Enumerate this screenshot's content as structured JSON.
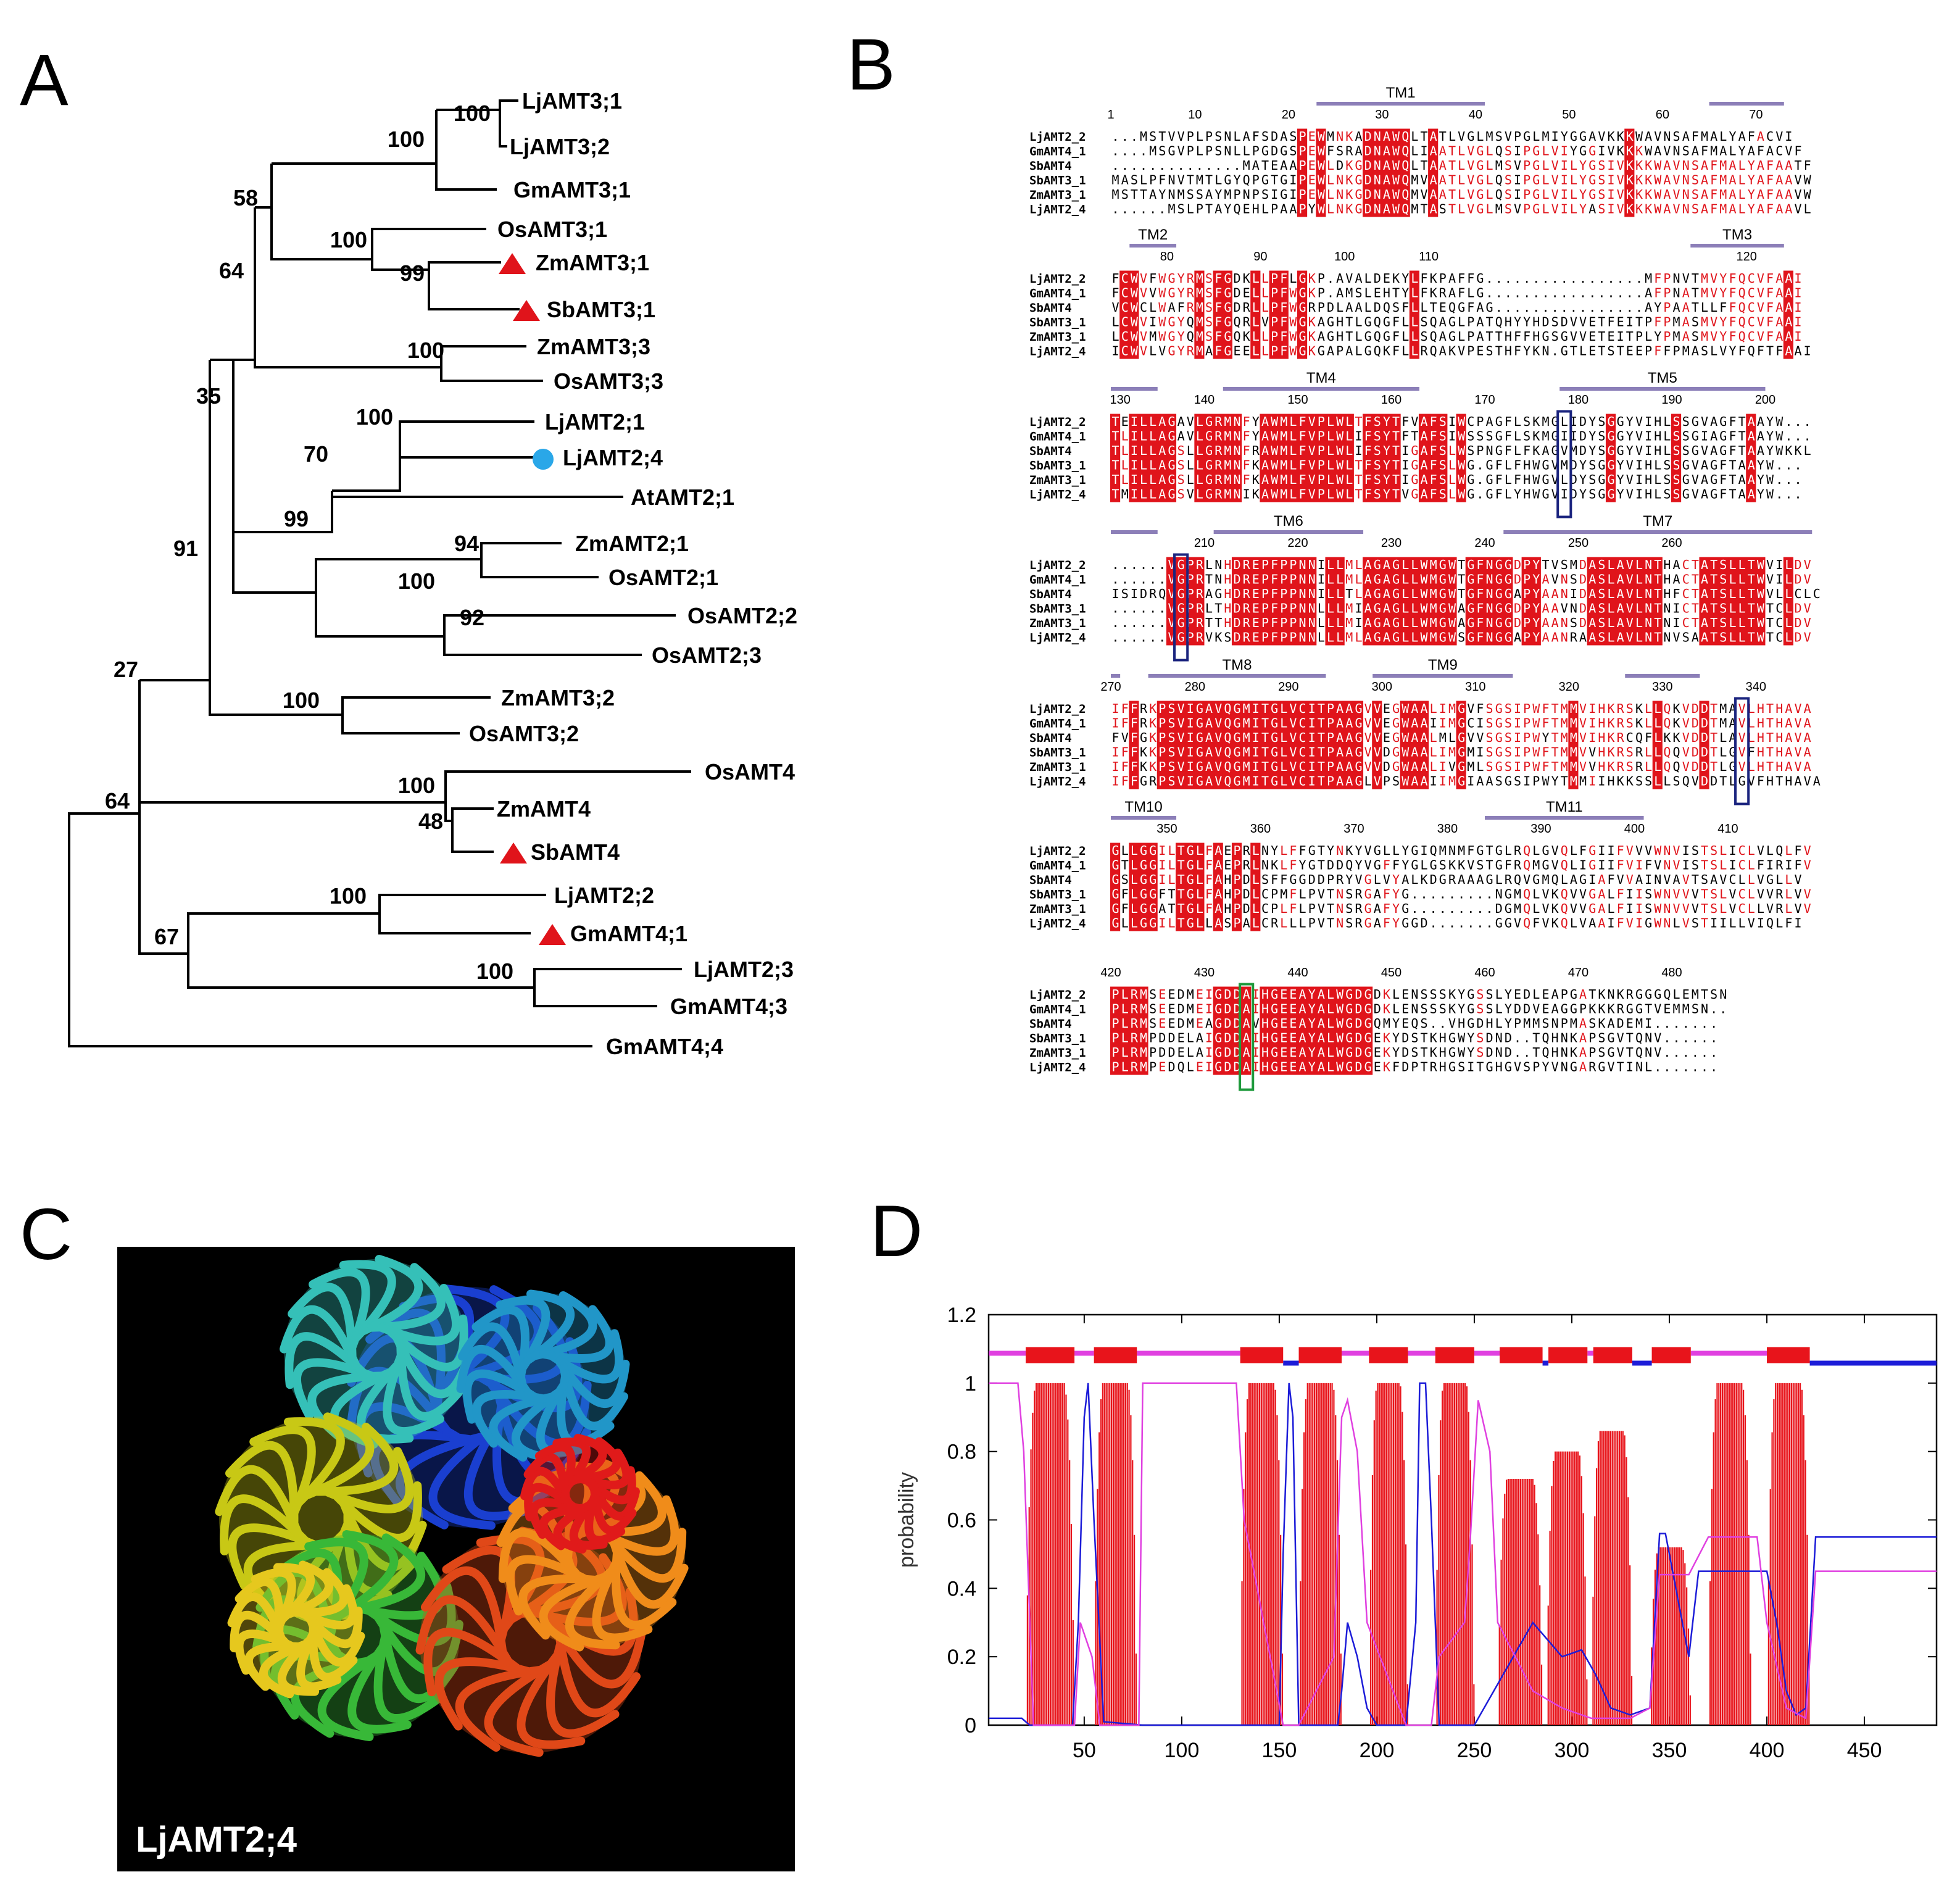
{
  "figure": {
    "panels": {
      "A": "A",
      "B": "B",
      "C": "C",
      "D": "D"
    },
    "colors": {
      "tree": "#000000",
      "triangle": "#e0141b",
      "circle": "#2aa7e8",
      "conserved": "#e0141b",
      "similar_text": "#e0141b",
      "tm_bar": "#8c7fb8",
      "box_blue": "#1a237e",
      "box_green": "#1e9a3c",
      "structure_bg": "#000000",
      "plot_red": "#e8141b",
      "plot_blue": "#1c1cd8",
      "plot_magenta": "#e040e0"
    }
  },
  "panel_a": {
    "leaves": [
      "LjAMT3;1",
      "LjAMT3;2",
      "GmAMT3;1",
      "OsAMT3;1",
      "ZmAMT3;1",
      "SbAMT3;1",
      "ZmAMT3;3",
      "OsAMT3;3",
      "LjAMT2;1",
      "LjAMT2;4",
      "AtAMT2;1",
      "ZmAMT2;1",
      "OsAMT2;1",
      "OsAMT2;2",
      "OsAMT2;3",
      "ZmAMT3;2",
      "OsAMT3;2",
      "OsAMT4",
      "ZmAMT4",
      "SbAMT4",
      "LjAMT2;2",
      "GmAMT4;1",
      "LjAMT2;3",
      "GmAMT4;3",
      "GmAMT4;4"
    ],
    "markers": {
      "triangle": [
        "ZmAMT3;1",
        "SbAMT3;1",
        "SbAMT4",
        "GmAMT4;1"
      ],
      "circle": [
        "LjAMT2;4"
      ]
    },
    "bootstrap": [
      "100",
      "100",
      "58",
      "100",
      "99",
      "64",
      "100",
      "35",
      "100",
      "70",
      "99",
      "94",
      "100",
      "92",
      "91",
      "27",
      "100",
      "100",
      "48",
      "64",
      "100",
      "67",
      "100"
    ]
  },
  "panel_b": {
    "tm_labels": [
      "TM1",
      "TM2",
      "TM3",
      "TM4",
      "TM5",
      "TM6",
      "TM7",
      "TM8",
      "TM9",
      "TM10",
      "TM11"
    ],
    "sequence_names": [
      "LjAMT2_2",
      "GmAMT4_1",
      "SbAMT4",
      "SbAMT3_1",
      "ZmAMT3_1",
      "LjAMT2_4"
    ],
    "blocks": [
      {
        "ruler": [
          "1",
          "10",
          "20",
          "30",
          "40",
          "50",
          "60",
          "70"
        ],
        "rows": [
          "...MSTVVPLPSNLAFSDASPEWMNKADNAWQLTATLVGLMSVPGLMIYGGAVKKKWAVNSAFMALYAFACVI",
          "....MSGVPLPSNLLPGDGSPEWFSRADNAWQLIAATLVGLQSIPGLVIYGGIVKKKWAVNSAFMALYAFACVF",
          "..............MATEAAPEWLDKGDNAWQLTAATLVGLMSVPGLVILYGSIVKKKWAVNSAFMALYAFAATF",
          "MASLPFNVTMTLGYQPGTGIPEWLNKGDNAWQMVAATLVGLQSIPGLVILYGSIVKKKWAVNSAFMALYAFAAVW",
          "MSTTAYNMSSAYMPNPSIGIPEWLNKGDNAWQMVAATLVGLQSIPGLVILYGSIVKKKWAVNSAFMALYAFAAVW",
          "......MSLPTAYQEHLPAAPYWLNKGDNAWQMTASTLVGLMSVPGLVILYASIVKKKWAVNSAFMALYAFAAVL"
        ]
      },
      {
        "ruler": [
          "80",
          "90",
          "100",
          "110",
          "120"
        ],
        "rows": [
          "FCWVFWGYRMSFGDKLLPFLGKP.AVALDEKYLFKPAFFG.................MFPNVTMVYFQCVFAAI",
          "FCWVVWGYRMSFGDELLPFWGKP.AMSLEHTYLFKRAFLG.................AFPNATMVYFQCVFAAI",
          "VCWCLWAFRMSFGDRLLPFWGRPDLAALDQSFLLTEQGFAG................AYPAATLLFFQCVFAAI",
          "LCWVIWGYQMSFGQRLVPFWGKAGHTLGQGFLLSQAGLPATQHYYHDSDVVETFEITPFPMASMVYFQCVFAAI",
          "LCWVMWGYQMSFGQKLLPFWGKAGHTLGQGFLLSQAGLPATTHFFHGSGVVETEITPLYPMASMVYFQCVFAAI",
          "ICWVLVGYRMAFGEELLPFWGKGAPALGQKFLLRQAKVPESTHFYKN.GTLETSTEEPFFPMASLVYFQFTFAAI"
        ]
      },
      {
        "ruler": [
          "130",
          "140",
          "150",
          "160",
          "170",
          "180",
          "190",
          "200"
        ],
        "rows": [
          "TEILLAGAVLGRMNFYAWMLFVPLWLTFSYTFVAFSIWCPAGFLSKMGLIDYSGGYVIHLSSGVAGFTAAYW...",
          "TLILLAGAVLGRMNFYAWMLFVPLWLIFSYTFTAFSIWSSSGFLSKMGIIDYSGGYVIHLSSGIAGFTAAYW...",
          "TLILLAGSLLGRMNFRAWMLFVPLWLIFSYTIGAFSLWSPNGFLFKAGVMDYSGGYVIHLSSGVAGFTAAYWKKL",
          "TLILLAGSLLGRMNFKAWMLFVPLWLTFSYTIGAFSLWG.GFLFHWGVMDYSGGYVIHLSSGVAGFTAAYW...",
          "TLILLAGSLLGRMNFKAWMLFVPLWLTFSYTIGAFSLWG.GFLFHWGVLDYSGGYVIHLSSGVAGFTAAYW...",
          "TMILLAGSVLGRMNIKAWMLFVPLWLTFSYTVGAFSLWG.GFLYHWGVIDYSGGYVIHLSSGVAGFTAAYW..."
        ]
      },
      {
        "ruler": [
          "210",
          "220",
          "230",
          "240",
          "250",
          "260"
        ],
        "rows": [
          "......VGPRLNHDREPFPPNNILLMLAGAGLLWMGWTGFNGGDPYTVSMDASLAVLNTHACTATSLLTWVILDV",
          "......VGPRTNHDREPFPPNNILLMLAGAGLLWMGWTGFNGGDPYAVNSDASLAVLNTHACTATSLLTWVILDV",
          "ISIDRQVGPRAGHDREPFPPNNILLTLAGAGLLWMGWTGFNGGAPYAANIDASLAVLNTHFCTATSLLTWVLLCLC",
          "......VGPRLTHDREPFPPNNLLLMIAGAGLLWMGWAGFNGGDPYAAVNDASLAVLNTNICTATSLLTWTCLDV",
          "......VGPRTTHDREPFPPNNLLLMIAGAGLLWMGWAGFNGGDPYAANSDASLAVLNTNICTATSLLTWTCLDV",
          "......VGPRVKSDREPFPPNNLLLMLAGAGLLWMGWSGFNGGAPYAANRAASLAVLNTNVSAATSLLTWTCLDV"
        ]
      },
      {
        "ruler": [
          "270",
          "280",
          "290",
          "300",
          "310",
          "320",
          "330",
          "340"
        ],
        "rows": [
          "IFFRKPSVIGAVQGMITGLVCITPAAGVVEGWAALIMGVFSGSIPWFTMMVIHKRSKLLQKVDDTMAVLHTHAVA",
          "IFFRKPSVIGAVQGMITGLVCITPAAGVVEGWAAIIMGCISGSIPWFTMMVIHKRSKLLQKVDDTMAVLHTHAVA",
          "FVFGKPSVIGAVQGMITGLVCITPAAGVVEGWAALMLGVVSGSIPWYTMMVIHKRCQFLKKVDDTLAVLHTHAVA",
          "IFFKKPSVIGAVQGMITGLVCITPAAGVVDGWAALIMGMISGSIPWFTMMVVHKRSRLLQQVDDTLGVFHTHAVA",
          "IFFKKPSVIGAVQGMITGLVCITPAAGVVDGWAALIVGMLSGSIPWFTMMVVHKRSRLLQQVDDTLGVLHTHAVA",
          "IFFGRPSVIGAVQGMITGLVCITPAAGLVPSWAAIIMGIAASGSIPWYTMMIIHKKSSLLSQVDDTLGVFHTHAVA"
        ]
      },
      {
        "ruler": [
          "350",
          "360",
          "370",
          "380",
          "390",
          "400",
          "410"
        ],
        "rows": [
          "GLLGGILTGLFAEPRLNYLFFGTYNKYVGLLYGIQMNMFGTGLRQLGVQLFGIIFVVVWNVISTSLICLVLQLFV",
          "GTLGGILTGLFAEPRLNKLFYGTDDQYVGFFYGLGSKKVSTGFRQMGVQLIGIIFVIFVNVISTSLICLFIRIFV",
          "GSLGGILTGLFAHPDLSFFGGDDPRYVGLVYALKDGRAAAGLRQVGMQLAGIAFVVAINVAVTSAVCLLVGLLV",
          "GFLGGFTTGLFAHPDLCPMFLPVTNSRGAFYG.........NGMQLVKQVVGALFIISWNVVVTSLVCLVVRLVV",
          "GFLGGATTGLFAHPDLCPLFLPVTNSRGAFYG.........DGMQLVKQVVGALFIISWNVVVTSLVCLLVRLVV",
          "GLLGGILTGLLASPALCRLLLPVTNSRGAFYGGD.......GGVQFVKQLVAAIFVIGWNLVSTIILLVIQLFI"
        ]
      },
      {
        "ruler": [
          "420",
          "430",
          "440",
          "450",
          "460",
          "470",
          "480"
        ],
        "rows": [
          "PLRMSEEDMEIGDDAIHGEEAYALWGDGDKLENSSSKYGSSLYEDLEAPGATKNKRGGGQLEMTSN",
          "PLRMSEEDMEIGDDAIHGEEAYALWGDGDKLENSSSKYGSSLYDDVEAGGPKKKRGGTVEMMSN..",
          "PLRMSEEDMEAGDDAVHGEEAYALWGDGQMYEQS..VHGDHLYPMMSNPMASKADEMI.......",
          "PLRMPDDELAIGDDAIHGEEAYALWGDGEKYDSTKHGWYSDND..TQHNKAPSGVTQNV......",
          "PLRMPDDELAIGDDAIHGEEAYALWGDGEKYDSTKHGWYSDND..TQHNKAPSGVTQNV......",
          "PLRMPEDQLEIGDDAIHGEEAYALWGDGEKFDPTRHGSITGHGVSPYVNGARGVTINL......."
        ]
      }
    ]
  },
  "panel_c": {
    "label": "LjAMT2;4"
  },
  "chart_data": {
    "type": "line",
    "title": "",
    "xlabel": "",
    "ylabel": "probability",
    "xlim": [
      1,
      487
    ],
    "ylim": [
      0,
      1.2
    ],
    "xticks": [
      50,
      100,
      150,
      200,
      250,
      300,
      350,
      400,
      450
    ],
    "yticks": [
      0,
      0.2,
      0.4,
      0.6,
      0.8,
      1,
      1.2
    ],
    "topology_blocks": [
      [
        20,
        45
      ],
      [
        55,
        77
      ],
      [
        130,
        152
      ],
      [
        160,
        182
      ],
      [
        196,
        216
      ],
      [
        230,
        250
      ],
      [
        263,
        285
      ],
      [
        288,
        308
      ],
      [
        311,
        331
      ],
      [
        341,
        361
      ],
      [
        400,
        422
      ]
    ],
    "outside_segments": [
      [
        1,
        20
      ],
      [
        45,
        55
      ],
      [
        77,
        130
      ],
      [
        182,
        196
      ],
      [
        216,
        230
      ],
      [
        250,
        263
      ],
      [
        308,
        311
      ],
      [
        361,
        400
      ]
    ],
    "inside_segments": [
      [
        152,
        160
      ],
      [
        285,
        288
      ],
      [
        331,
        341
      ],
      [
        422,
        487
      ]
    ],
    "transmembrane_peaks": [
      {
        "start": 20,
        "end": 45,
        "height": 1.0
      },
      {
        "start": 55,
        "end": 77,
        "height": 1.0
      },
      {
        "start": 130,
        "end": 152,
        "height": 1.0
      },
      {
        "start": 160,
        "end": 182,
        "height": 1.0
      },
      {
        "start": 196,
        "end": 216,
        "height": 1.0
      },
      {
        "start": 230,
        "end": 250,
        "height": 1.0
      },
      {
        "start": 262,
        "end": 285,
        "height": 0.72
      },
      {
        "start": 287,
        "end": 308,
        "height": 0.8
      },
      {
        "start": 310,
        "end": 331,
        "height": 0.86
      },
      {
        "start": 340,
        "end": 361,
        "height": 0.52
      },
      {
        "start": 370,
        "end": 392,
        "height": 1.0
      },
      {
        "start": 400,
        "end": 422,
        "height": 1.0
      }
    ],
    "series": [
      {
        "name": "inside",
        "color": "#1c1cd8",
        "x": [
          1,
          18,
          22,
          44,
          47,
          50,
          52,
          55,
          60,
          80,
          128,
          132,
          150,
          152,
          155,
          157,
          160,
          180,
          182,
          185,
          190,
          195,
          200,
          215,
          220,
          222,
          225,
          228,
          232,
          250,
          260,
          280,
          295,
          305,
          312,
          320,
          330,
          340,
          345,
          348,
          360,
          365,
          385,
          400,
          405,
          410,
          415,
          420,
          425,
          487
        ],
        "y": [
          0.02,
          0.02,
          0.0,
          0.0,
          0.3,
          0.9,
          1.0,
          0.6,
          0.01,
          0.0,
          0.0,
          0.0,
          0.0,
          0.5,
          1.0,
          0.9,
          0.0,
          0.0,
          0.1,
          0.3,
          0.2,
          0.05,
          0.0,
          0.0,
          0.3,
          1.0,
          1.0,
          0.6,
          0.0,
          0.0,
          0.1,
          0.3,
          0.2,
          0.22,
          0.15,
          0.05,
          0.03,
          0.05,
          0.56,
          0.56,
          0.2,
          0.45,
          0.45,
          0.45,
          0.3,
          0.1,
          0.03,
          0.05,
          0.55,
          0.55
        ]
      },
      {
        "name": "outside",
        "color": "#e040e0",
        "x": [
          1,
          16,
          19,
          24,
          45,
          48,
          54,
          58,
          78,
          80,
          128,
          132,
          152,
          155,
          160,
          178,
          182,
          185,
          190,
          195,
          215,
          220,
          228,
          232,
          245,
          248,
          252,
          258,
          262,
          280,
          295,
          310,
          330,
          340,
          345,
          350,
          360,
          370,
          380,
          395,
          400,
          410,
          420,
          425,
          487
        ],
        "y": [
          1.0,
          1.0,
          0.8,
          0.0,
          0.0,
          0.3,
          0.2,
          0.0,
          0.0,
          1.0,
          1.0,
          0.6,
          0.0,
          0.0,
          0.0,
          0.2,
          0.9,
          0.95,
          0.8,
          0.3,
          0.0,
          0.0,
          0.0,
          0.2,
          0.3,
          0.55,
          0.95,
          0.8,
          0.3,
          0.1,
          0.05,
          0.02,
          0.02,
          0.05,
          0.44,
          0.44,
          0.44,
          0.55,
          0.55,
          0.55,
          0.3,
          0.05,
          0.02,
          0.45,
          0.45
        ]
      }
    ],
    "legend": []
  }
}
